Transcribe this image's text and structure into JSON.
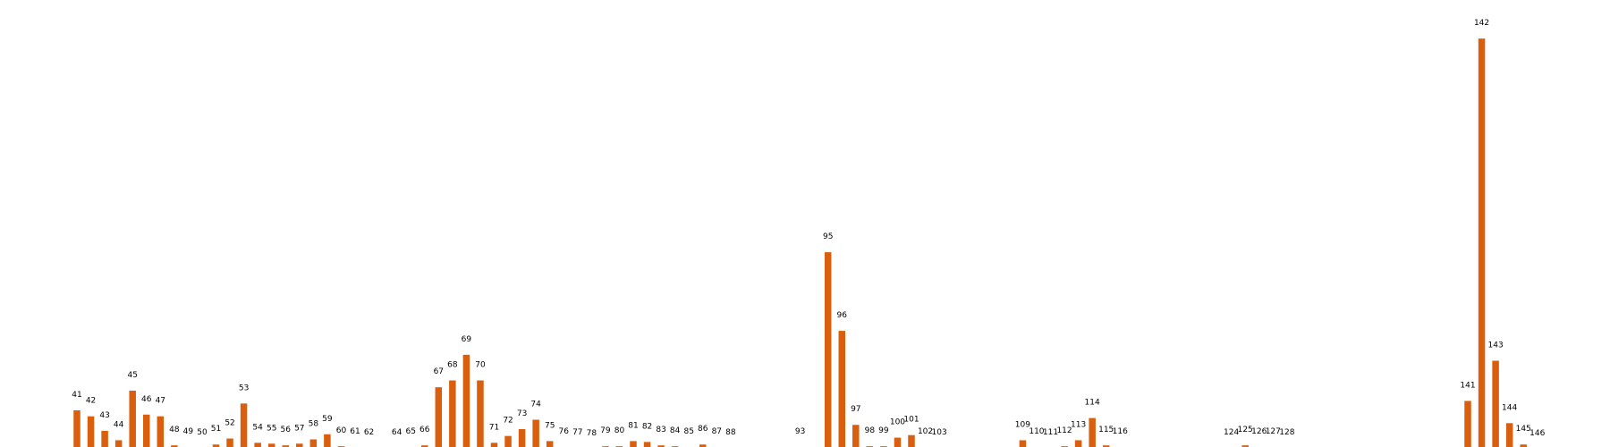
{
  "chart_data": {
    "type": "bar",
    "color": "#d95f0e",
    "grid": false,
    "axes_visible": false,
    "x": [
      41,
      42,
      43,
      44,
      45,
      46,
      47,
      48,
      49,
      50,
      51,
      52,
      53,
      54,
      55,
      56,
      57,
      58,
      59,
      60,
      61,
      62,
      64,
      65,
      66,
      67,
      68,
      69,
      70,
      71,
      72,
      73,
      74,
      75,
      76,
      77,
      78,
      79,
      80,
      81,
      82,
      83,
      84,
      85,
      86,
      87,
      88,
      93,
      95,
      96,
      97,
      98,
      99,
      100,
      101,
      102,
      103,
      109,
      110,
      111,
      112,
      113,
      114,
      115,
      116,
      124,
      125,
      126,
      127,
      128,
      141,
      142,
      143,
      144,
      145,
      146
    ],
    "labels": [
      "41",
      "42",
      "43",
      "44",
      "45",
      "46",
      "47",
      "48",
      "49",
      "50",
      "51",
      "52",
      "53",
      "54",
      "55",
      "56",
      "57",
      "58",
      "59",
      "60",
      "61",
      "62",
      "64",
      "65",
      "66",
      "67",
      "68",
      "69",
      "70",
      "71",
      "72",
      "73",
      "74",
      "75",
      "76",
      "77",
      "78",
      "79",
      "80",
      "81",
      "82",
      "83",
      "84",
      "85",
      "86",
      "87",
      "88",
      "93",
      "95",
      "96",
      "97",
      "98",
      "99",
      "100",
      "101",
      "102",
      "103",
      "109",
      "110",
      "111",
      "112",
      "113",
      "114",
      "115",
      "116",
      "124",
      "125",
      "126",
      "127",
      "128",
      "141",
      "142",
      "143",
      "144",
      "145",
      "146"
    ],
    "values": [
      45,
      38,
      21,
      10,
      68,
      40,
      38,
      4,
      2,
      1,
      5,
      12,
      53,
      7,
      6,
      4,
      6,
      11,
      17,
      3,
      2,
      1,
      1,
      2,
      4,
      72,
      80,
      110,
      80,
      7,
      15,
      23,
      34,
      9,
      2,
      1,
      0,
      3,
      3,
      9,
      8,
      4,
      3,
      2,
      5,
      2,
      1,
      2,
      230,
      138,
      28,
      3,
      3,
      13,
      16,
      2,
      1,
      10,
      2,
      1,
      3,
      10,
      36,
      4,
      2,
      1,
      4,
      2,
      2,
      1,
      56,
      480,
      103,
      30,
      5,
      0
    ],
    "x_range": [
      36,
      151
    ],
    "ylim": [
      0,
      500
    ]
  }
}
